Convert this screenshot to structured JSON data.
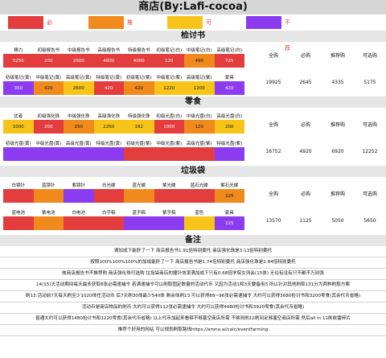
{
  "title": "商店(By:Lafi-cocoa)",
  "legend": [
    {
      "label": "必需",
      "color": "#e43d3d"
    },
    {
      "label": "推荐购",
      "color": "#f08a1c"
    },
    {
      "label": "可选购",
      "color": "#f7c51a"
    },
    {
      "label": "不推荐",
      "color": "#8b3cf0"
    }
  ],
  "sections": [
    {
      "title": "检讨书",
      "rows": [
        {
          "cells": [
            {
              "label": "稀力",
              "value": "5250",
              "color": "red"
            },
            {
              "label": "初级报告书",
              "value": "200",
              "color": "red"
            },
            {
              "label": "中级报告书",
              "value": "2000",
              "color": "red"
            },
            {
              "label": "高级报告书",
              "value": "4000",
              "color": "red"
            },
            {
              "label": "特级报告书",
              "value": "4000",
              "color": "red"
            },
            {
              "label": "初级笔记(白)",
              "value": "120",
              "color": "red"
            },
            {
              "label": "中级笔记(白)",
              "value": "490",
              "color": "orange"
            },
            {
              "label": "高级笔记(白)",
              "value": "725",
              "color": "red"
            },
            {
              "label": "特级笔记(白)",
              "value": "720",
              "color": "red"
            }
          ]
        },
        {
          "cells": [
            {
              "label": "初级笔记(黄)",
              "value": "350",
              "color": "purple"
            },
            {
              "label": "中级笔记(黄)",
              "value": "420",
              "color": "orange"
            },
            {
              "label": "高级笔记(黄)",
              "value": "2600",
              "color": "yellow"
            },
            {
              "label": "特级笔记(黄)",
              "value": "420",
              "color": "red"
            },
            {
              "label": "初级笔记(紫)",
              "value": "420",
              "color": "orange"
            },
            {
              "label": "中级笔记(紫)",
              "value": "1220",
              "color": "yellow"
            },
            {
              "label": "高级笔记(紫)",
              "value": "1200",
              "color": "yellow"
            },
            {
              "label": "家具",
              "value": "420",
              "color": "purple"
            },
            {
              "label": "",
              "value": "",
              "color": "none"
            }
          ]
        }
      ],
      "summary": {
        "headers": [
          "全购",
          "必购",
          "推荐购",
          "可选购"
        ],
        "values": [
          "19925",
          "2645",
          "4335",
          "5175"
        ]
      }
    },
    {
      "title": "零食",
      "rows": [
        {
          "cells": [
            {
              "label": "优者",
              "value": "1000",
              "color": "yellow"
            },
            {
              "label": "初级强化珠",
              "value": "200",
              "color": "red"
            },
            {
              "label": "中级强化珠",
              "value": "250",
              "color": "orange"
            },
            {
              "label": "高级强化珠",
              "value": "2260",
              "color": "yellow"
            },
            {
              "label": "特级强化珠",
              "value": "192",
              "color": "yellow"
            },
            {
              "label": "初级光盘(白)",
              "value": "1000",
              "color": "red"
            },
            {
              "label": "中级光盘(白)",
              "value": "120",
              "color": "orange"
            },
            {
              "label": "高级光盘(白)",
              "value": "200",
              "color": "yellow"
            },
            {
              "label": "特级光盘(白)",
              "value": "2140",
              "color": "yellow"
            }
          ]
        },
        {
          "cells": [
            {
              "label": "初级光盘(黄)",
              "value": "",
              "color": "purple"
            },
            {
              "label": "中级光盘(黄)",
              "value": "",
              "color": "purple"
            },
            {
              "label": "高级光盘(黄)",
              "value": "",
              "color": "purple"
            },
            {
              "label": "特级光盘(黄)",
              "value": "",
              "color": "purple"
            },
            {
              "label": "初级光盘(紫)",
              "value": "",
              "color": "red"
            },
            {
              "label": "中级光盘(紫)",
              "value": "",
              "color": "red"
            },
            {
              "label": "高级光盘(紫)",
              "value": "",
              "color": "red"
            },
            {
              "label": "特级光盘(紫)",
              "value": "",
              "color": "purple"
            },
            {
              "label": "家具",
              "value": "",
              "color": "purple"
            }
          ]
        }
      ],
      "summary": {
        "headers": [
          "全购",
          "必购",
          "推荐购",
          "可选购"
        ],
        "values": [
          "16752",
          "4920",
          "6920",
          "12252"
        ]
      }
    },
    {
      "title": "垃圾袋",
      "rows": [
        {
          "cells": [
            {
              "label": "白镜针",
              "value": "",
              "color": "red"
            },
            {
              "label": "蓝镜针",
              "value": "",
              "color": "orange"
            },
            {
              "label": "紫镜针",
              "value": "",
              "color": "purple"
            },
            {
              "label": "白光碟",
              "value": "",
              "color": "red"
            },
            {
              "label": "蓝光碟",
              "value": "",
              "color": "orange"
            },
            {
              "label": "紫光碟",
              "value": "",
              "color": "red"
            },
            {
              "label": "蓝石光碟",
              "value": "",
              "color": "red"
            },
            {
              "label": "紫石光碟",
              "value": "",
              "color": "red"
            },
            {
              "label": "白色",
              "value": "225",
              "color": "orange"
            }
          ]
        },
        {
          "cells": [
            {
              "label": "蓝电池",
              "value": "",
              "color": "red"
            },
            {
              "label": "紫电池",
              "value": "",
              "color": "orange"
            },
            {
              "label": "白电池",
              "value": "",
              "color": "red"
            },
            {
              "label": "白手稿",
              "value": "",
              "color": "red"
            },
            {
              "label": "蓝手稿",
              "value": "",
              "color": "purple"
            },
            {
              "label": "紫手稿",
              "value": "",
              "color": "purple"
            },
            {
              "label": "蓝色",
              "value": "",
              "color": "yellow"
            },
            {
              "label": "紫色",
              "value": "",
              "color": "yellow"
            },
            {
              "label": "家具",
              "value": "225",
              "color": "purple"
            }
          ]
        }
      ],
      "summary": {
        "headers": [
          "全购",
          "必购",
          "推荐购",
          "可选购"
        ],
        "values": [
          "13570",
          "1125",
          "5050",
          "5650"
        ]
      }
    }
  ],
  "notes_title": "备注",
  "notes": [
    "满加成下能肝了一下 商店报告书1.91倍特别委托 商店强化珠是3.13倍特别委托",
    "按照100%100%100%的加成能肝了一下 商店报告书是1.74倍特别委托 商店强化珠是2.84倍特别委托",
    "故商店报告书不推荐购 商店强化珠可选购 垃圾袋商店的撞针效率满加成下只有0.68倍学院交流会(15体) 无论有没有只不都不万别强",
    "14(15)天活动期间每天最多获取8张必需速捕令 若满速捕令可以刷取固定数量的活动代币 又因为活动1和3天要备用3 所以针对其他刷取131分为两种刷取方案",
    "刷13:活动前7天每天刷至少1020体任活动币 后7天刷30体最少540体 剩余体刷13 可以获得88~96张必需速捕令 大约可以获得3680检讨书和3200零食(其余代币省略)",
    "活动币是商店物品的刷币 大约可以获得112张必需速捕令 大约可以获得4480检讨书和3920零食(其余代币省略)",
    "普通大约可以获得1480检讨书和1220零食(其余代币省略) 以上代币加起来看够不够塞空商店所需 不够则刷12刷到足够塞空商店所需 然后all in 11刷收雷碎片",
    "推荐个好用的网站 可以规划刷取路线https://arona.ai/calc/eventfarming"
  ]
}
